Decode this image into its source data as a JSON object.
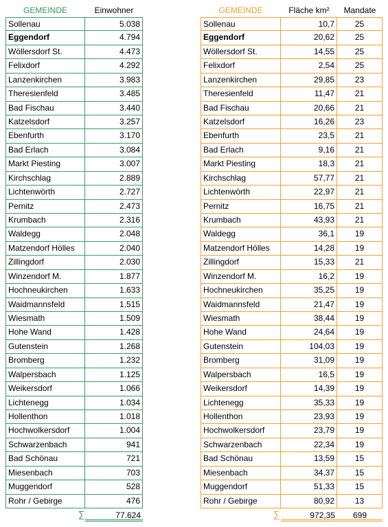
{
  "left": {
    "header": [
      "GEMEINDE",
      "Einwohner"
    ],
    "rows": [
      [
        "Sollenau",
        "5.038"
      ],
      [
        "Eggendorf",
        "4.794"
      ],
      [
        "Wöllersdorf St.",
        "4.473"
      ],
      [
        "Felixdorf",
        "4.292"
      ],
      [
        "Lanzenkirchen",
        "3.983"
      ],
      [
        "Theresienfeld",
        "3.485"
      ],
      [
        "Bad Fischau",
        "3.440"
      ],
      [
        "Katzelsdorf",
        "3.257"
      ],
      [
        "Ebenfurth",
        "3.170"
      ],
      [
        "Bad Erlach",
        "3.084"
      ],
      [
        "Markt Piesting",
        "3.007"
      ],
      [
        "Kirchschlag",
        "2.889"
      ],
      [
        "Lichtenwörth",
        "2.727"
      ],
      [
        "Pernitz",
        "2.473"
      ],
      [
        "Krumbach",
        "2.316"
      ],
      [
        "Waldegg",
        "2.048"
      ],
      [
        "Matzendorf Hölles",
        "2.040"
      ],
      [
        "Zillingdorf",
        "2.030"
      ],
      [
        "Winzendorf M.",
        "1.877"
      ],
      [
        "Hochneukirchen",
        "1.633"
      ],
      [
        "Waidmannsfeld",
        "1.515"
      ],
      [
        "Wiesmath",
        "1.509"
      ],
      [
        "Hohe Wand",
        "1.428"
      ],
      [
        "Gutenstein",
        "1.268"
      ],
      [
        "Bromberg",
        "1.232"
      ],
      [
        "Walpersbach",
        "1.125"
      ],
      [
        "Weikersdorf",
        "1.066"
      ],
      [
        "Lichtenegg",
        "1.034"
      ],
      [
        "Hollenthon",
        "1.018"
      ],
      [
        "Hochwolkersdorf",
        "1.004"
      ],
      [
        "Schwarzenbach",
        "941"
      ],
      [
        "Bad Schönau",
        "721"
      ],
      [
        "Miesenbach",
        "703"
      ],
      [
        "Muggendorf",
        "528"
      ],
      [
        "Rohr / Gebirge",
        "476"
      ]
    ],
    "total_symbol": "∑",
    "totals": [
      "77.624"
    ]
  },
  "right": {
    "header": [
      "GEMEINDE",
      "Fläche km²",
      "Mandate"
    ],
    "rows": [
      [
        "Sollenau",
        "10,7",
        "25"
      ],
      [
        "Eggendorf",
        "20,62",
        "25"
      ],
      [
        "Wöllersdorf St.",
        "14,55",
        "25"
      ],
      [
        "Felixdorf",
        "2,54",
        "25"
      ],
      [
        "Lanzenkirchen",
        "29,85",
        "23"
      ],
      [
        "Theresienfeld",
        "11,47",
        "21"
      ],
      [
        "Bad Fischau",
        "20,66",
        "21"
      ],
      [
        "Katzelsdorf",
        "16,26",
        "23"
      ],
      [
        "Ebenfurth",
        "23,5",
        "21"
      ],
      [
        "Bad Erlach",
        "9,16",
        "21"
      ],
      [
        "Markt Piesting",
        "18,3",
        "21"
      ],
      [
        "Kirchschlag",
        "57,77",
        "21"
      ],
      [
        "Lichtenwörth",
        "22,97",
        "21"
      ],
      [
        "Pernitz",
        "16,75",
        "21"
      ],
      [
        "Krumbach",
        "43,93",
        "21"
      ],
      [
        "Waldegg",
        "36,1",
        "19"
      ],
      [
        "Matzendorf Hölles",
        "14,28",
        "19"
      ],
      [
        "Zillingdorf",
        "15,33",
        "21"
      ],
      [
        "Winzendorf M.",
        "16,2",
        "19"
      ],
      [
        "Hochneukirchen",
        "35,25",
        "19"
      ],
      [
        "Waidmannsfeld",
        "21,47",
        "19"
      ],
      [
        "Wiesmath",
        "38,44",
        "19"
      ],
      [
        "Hohe Wand",
        "24,64",
        "19"
      ],
      [
        "Gutenstein",
        "104,03",
        "19"
      ],
      [
        "Bromberg",
        "31,09",
        "19"
      ],
      [
        "Walpersbach",
        "16,5",
        "19"
      ],
      [
        "Weikersdorf",
        "14,39",
        "19"
      ],
      [
        "Lichtenegg",
        "35,33",
        "19"
      ],
      [
        "Hollenthon",
        "23,93",
        "19"
      ],
      [
        "Hochwolkersdorf",
        "23,79",
        "19"
      ],
      [
        "Schwarzenbach",
        "22,34",
        "19"
      ],
      [
        "Bad Schönau",
        "13,59",
        "15"
      ],
      [
        "Miesenbach",
        "34,37",
        "15"
      ],
      [
        "Muggendorf",
        "51,33",
        "15"
      ],
      [
        "Rohr / Gebirge",
        "80,92",
        "13"
      ]
    ],
    "total_symbol": "∑",
    "totals": [
      "972,35",
      "699"
    ]
  }
}
